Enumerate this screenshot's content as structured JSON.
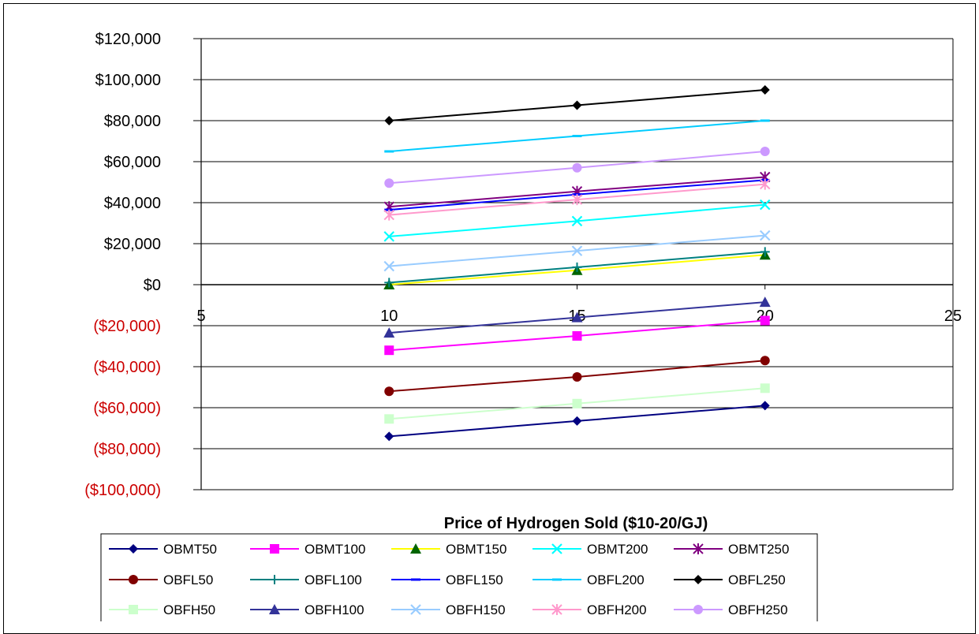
{
  "chart_data": {
    "type": "line",
    "xlabel": "Price of Hydrogen Sold ($10-20/GJ)",
    "ylabel": "",
    "title": "",
    "x": [
      10,
      15,
      20
    ],
    "xlim": [
      5,
      25
    ],
    "xticks": [
      "5",
      "10",
      "15",
      "20",
      "25"
    ],
    "ylim": [
      -100000,
      120000
    ],
    "yticks": [
      {
        "value": 120000,
        "label": "$120,000",
        "color": "#000000"
      },
      {
        "value": 100000,
        "label": "$100,000",
        "color": "#000000"
      },
      {
        "value": 80000,
        "label": "$80,000",
        "color": "#000000"
      },
      {
        "value": 60000,
        "label": "$60,000",
        "color": "#000000"
      },
      {
        "value": 40000,
        "label": "$40,000",
        "color": "#000000"
      },
      {
        "value": 20000,
        "label": "$20,000",
        "color": "#000000"
      },
      {
        "value": 0,
        "label": "$0",
        "color": "#000000"
      },
      {
        "value": -20000,
        "label": "($20,000)",
        "color": "#cc0000"
      },
      {
        "value": -40000,
        "label": "($40,000)",
        "color": "#cc0000"
      },
      {
        "value": -60000,
        "label": "($60,000)",
        "color": "#cc0000"
      },
      {
        "value": -80000,
        "label": "($80,000)",
        "color": "#cc0000"
      },
      {
        "value": -100000,
        "label": "($100,000)",
        "color": "#cc0000"
      }
    ],
    "grid": true,
    "legend_position": "bottom",
    "series": [
      {
        "name": "OBMT50",
        "color": "#000080",
        "marker": "diamond",
        "values": [
          -74000,
          -66500,
          -59000
        ]
      },
      {
        "name": "OBMT100",
        "color": "#ff00ff",
        "marker": "square",
        "values": [
          -32000,
          -25000,
          -17500
        ]
      },
      {
        "name": "OBMT150",
        "color": "#ffff00",
        "markerColor": "#006400",
        "marker": "triangle",
        "values": [
          0,
          7000,
          14500
        ]
      },
      {
        "name": "OBMT200",
        "color": "#00ffff",
        "marker": "x",
        "values": [
          23500,
          31000,
          39000
        ]
      },
      {
        "name": "OBMT250",
        "color": "#800080",
        "marker": "star",
        "values": [
          38000,
          45500,
          52500
        ]
      },
      {
        "name": "OBFL50",
        "color": "#800000",
        "marker": "circle",
        "values": [
          -52000,
          -45000,
          -37000
        ]
      },
      {
        "name": "OBFL100",
        "color": "#008080",
        "marker": "plus",
        "values": [
          1000,
          8500,
          16000
        ]
      },
      {
        "name": "OBFL150",
        "color": "#0000ff",
        "marker": "dash",
        "values": [
          36500,
          44000,
          51000
        ]
      },
      {
        "name": "OBFL200",
        "color": "#00ccff",
        "marker": "dash",
        "values": [
          65000,
          72500,
          80000
        ]
      },
      {
        "name": "OBFL250",
        "color": "#000000",
        "marker": "diamond",
        "values": [
          80000,
          87500,
          95000
        ]
      },
      {
        "name": "OBFH50",
        "color": "#ccffcc",
        "marker": "square",
        "values": [
          -65500,
          -58000,
          -50500
        ]
      },
      {
        "name": "OBFH100",
        "color": "#333399",
        "marker": "triangle",
        "values": [
          -23500,
          -16000,
          -8500
        ]
      },
      {
        "name": "OBFH150",
        "color": "#99ccff",
        "marker": "x",
        "values": [
          9000,
          16500,
          24000
        ]
      },
      {
        "name": "OBFH200",
        "color": "#ff99cc",
        "marker": "star",
        "values": [
          34000,
          41500,
          49000
        ]
      },
      {
        "name": "OBFH250",
        "color": "#cc99ff",
        "marker": "circle",
        "values": [
          49500,
          57000,
          65000
        ]
      }
    ]
  }
}
